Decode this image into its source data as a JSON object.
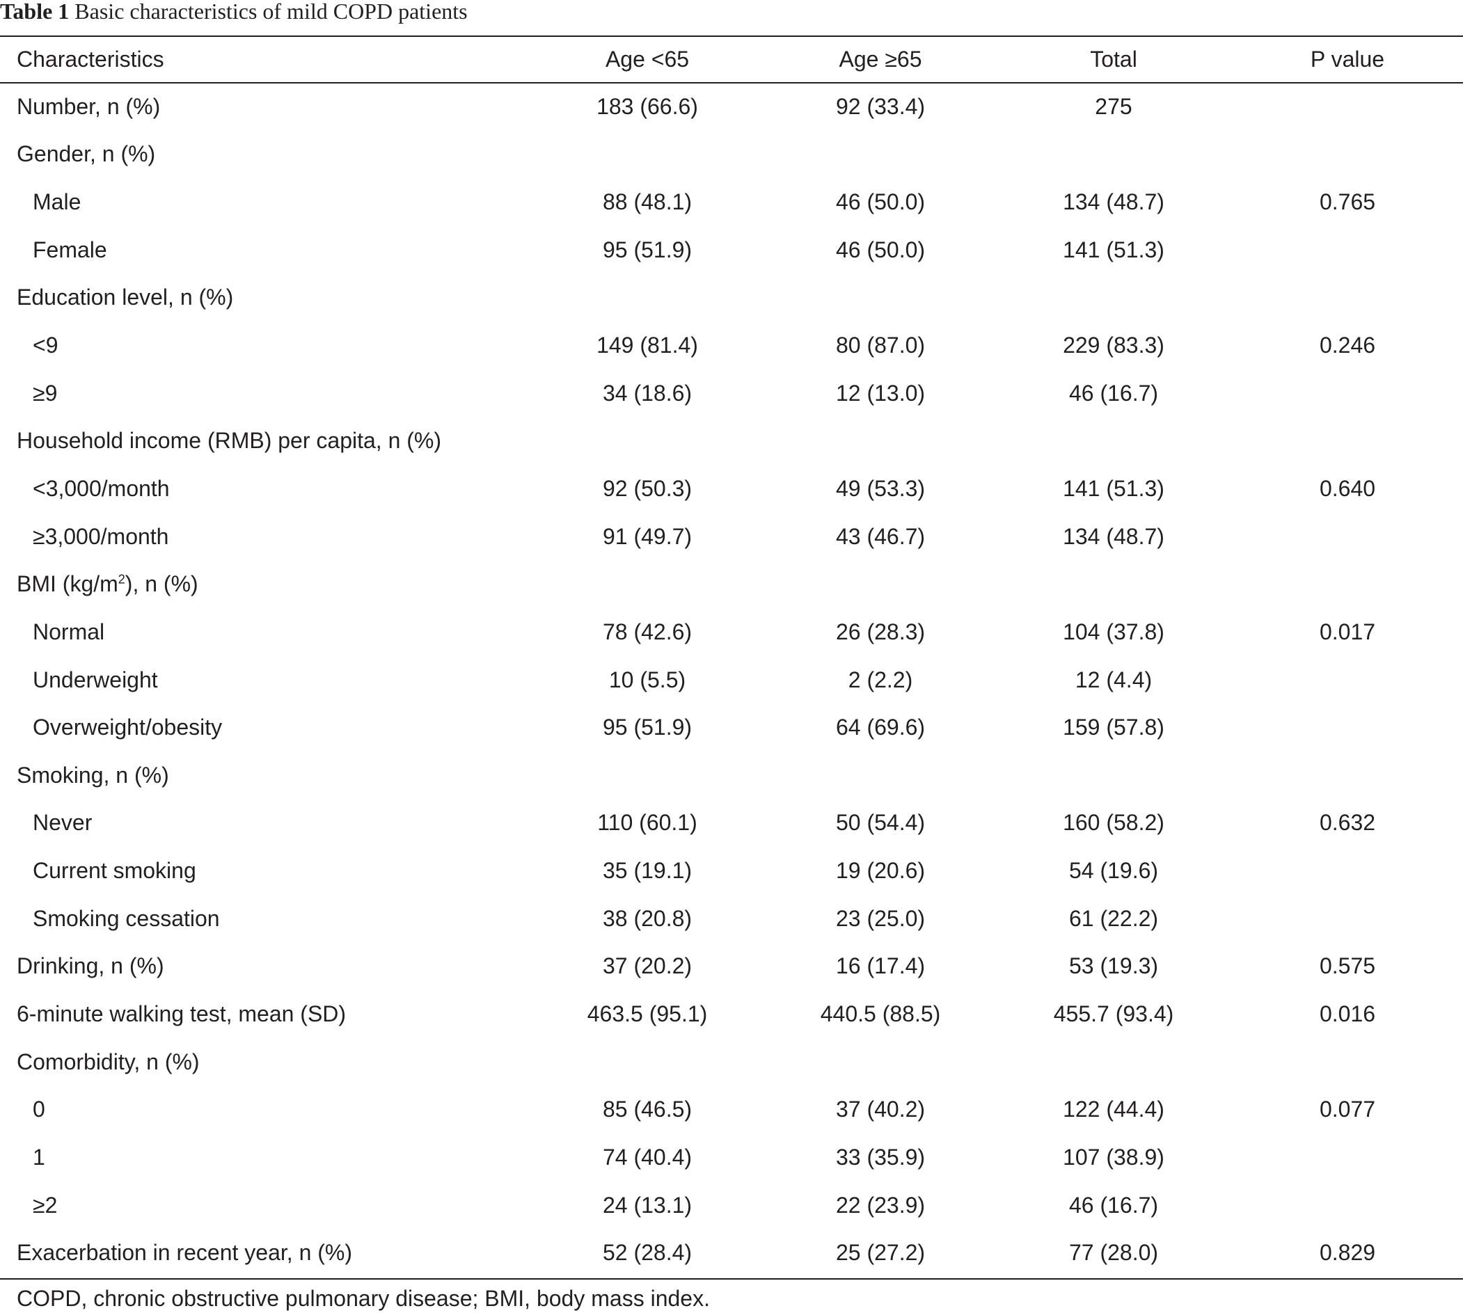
{
  "caption": {
    "label": "Table 1",
    "title": "Basic characteristics of mild COPD patients"
  },
  "header": {
    "characteristics": "Characteristics",
    "age_lt65": "Age <65",
    "age_ge65": "Age ≥65",
    "total": "Total",
    "p_value": "P value"
  },
  "rows": [
    {
      "label": "Number, n (%)",
      "indent": false,
      "age_lt65": "183 (66.6)",
      "age_ge65": "92 (33.4)",
      "total": "275",
      "p": ""
    },
    {
      "label": "Gender, n (%)",
      "indent": false,
      "age_lt65": "",
      "age_ge65": "",
      "total": "",
      "p": ""
    },
    {
      "label": "Male",
      "indent": true,
      "age_lt65": "88 (48.1)",
      "age_ge65": "46 (50.0)",
      "total": "134 (48.7)",
      "p": "0.765"
    },
    {
      "label": "Female",
      "indent": true,
      "age_lt65": "95 (51.9)",
      "age_ge65": "46 (50.0)",
      "total": "141 (51.3)",
      "p": ""
    },
    {
      "label": "Education level, n (%)",
      "indent": false,
      "age_lt65": "",
      "age_ge65": "",
      "total": "",
      "p": ""
    },
    {
      "label": "<9",
      "indent": true,
      "age_lt65": "149 (81.4)",
      "age_ge65": "80 (87.0)",
      "total": "229 (83.3)",
      "p": "0.246"
    },
    {
      "label": "≥9",
      "indent": true,
      "age_lt65": "34 (18.6)",
      "age_ge65": "12 (13.0)",
      "total": "46 (16.7)",
      "p": ""
    },
    {
      "label": "Household income (RMB) per capita, n (%)",
      "indent": false,
      "age_lt65": "",
      "age_ge65": "",
      "total": "",
      "p": ""
    },
    {
      "label": "<3,000/month",
      "indent": true,
      "age_lt65": "92 (50.3)",
      "age_ge65": "49 (53.3)",
      "total": "141 (51.3)",
      "p": "0.640"
    },
    {
      "label": "≥3,000/month",
      "indent": true,
      "age_lt65": "91 (49.7)",
      "age_ge65": "43 (46.7)",
      "total": "134 (48.7)",
      "p": ""
    },
    {
      "label": "BMI (kg/m",
      "label_sup": "2",
      "label_after": "), n (%)",
      "indent": false,
      "age_lt65": "",
      "age_ge65": "",
      "total": "",
      "p": ""
    },
    {
      "label": "Normal",
      "indent": true,
      "age_lt65": "78 (42.6)",
      "age_ge65": "26 (28.3)",
      "total": "104 (37.8)",
      "p": "0.017"
    },
    {
      "label": "Underweight",
      "indent": true,
      "age_lt65": "10 (5.5)",
      "age_ge65": "2 (2.2)",
      "total": "12 (4.4)",
      "p": ""
    },
    {
      "label": "Overweight/obesity",
      "indent": true,
      "age_lt65": "95 (51.9)",
      "age_ge65": "64 (69.6)",
      "total": "159 (57.8)",
      "p": ""
    },
    {
      "label": "Smoking, n (%)",
      "indent": false,
      "age_lt65": "",
      "age_ge65": "",
      "total": "",
      "p": ""
    },
    {
      "label": "Never",
      "indent": true,
      "age_lt65": "110 (60.1)",
      "age_ge65": "50 (54.4)",
      "total": "160 (58.2)",
      "p": "0.632"
    },
    {
      "label": "Current smoking",
      "indent": true,
      "age_lt65": "35 (19.1)",
      "age_ge65": "19 (20.6)",
      "total": "54 (19.6)",
      "p": ""
    },
    {
      "label": "Smoking cessation",
      "indent": true,
      "age_lt65": "38 (20.8)",
      "age_ge65": "23 (25.0)",
      "total": "61 (22.2)",
      "p": ""
    },
    {
      "label": "Drinking, n (%)",
      "indent": false,
      "age_lt65": "37 (20.2)",
      "age_ge65": "16 (17.4)",
      "total": "53 (19.3)",
      "p": "0.575"
    },
    {
      "label": "6-minute walking test, mean (SD)",
      "indent": false,
      "age_lt65": "463.5 (95.1)",
      "age_ge65": "440.5 (88.5)",
      "total": "455.7 (93.4)",
      "p": "0.016"
    },
    {
      "label": "Comorbidity, n (%)",
      "indent": false,
      "age_lt65": "",
      "age_ge65": "",
      "total": "",
      "p": ""
    },
    {
      "label": "0",
      "indent": true,
      "age_lt65": "85 (46.5)",
      "age_ge65": "37 (40.2)",
      "total": "122 (44.4)",
      "p": "0.077"
    },
    {
      "label": "1",
      "indent": true,
      "age_lt65": "74 (40.4)",
      "age_ge65": "33 (35.9)",
      "total": "107 (38.9)",
      "p": ""
    },
    {
      "label": "≥2",
      "indent": true,
      "age_lt65": "24 (13.1)",
      "age_ge65": "22 (23.9)",
      "total": "46 (16.7)",
      "p": ""
    },
    {
      "label": "Exacerbation in recent year, n (%)",
      "indent": false,
      "age_lt65": "52 (28.4)",
      "age_ge65": "25 (27.2)",
      "total": "77 (28.0)",
      "p": "0.829"
    }
  ],
  "footnote": "COPD, chronic obstructive pulmonary disease; BMI, body mass index."
}
